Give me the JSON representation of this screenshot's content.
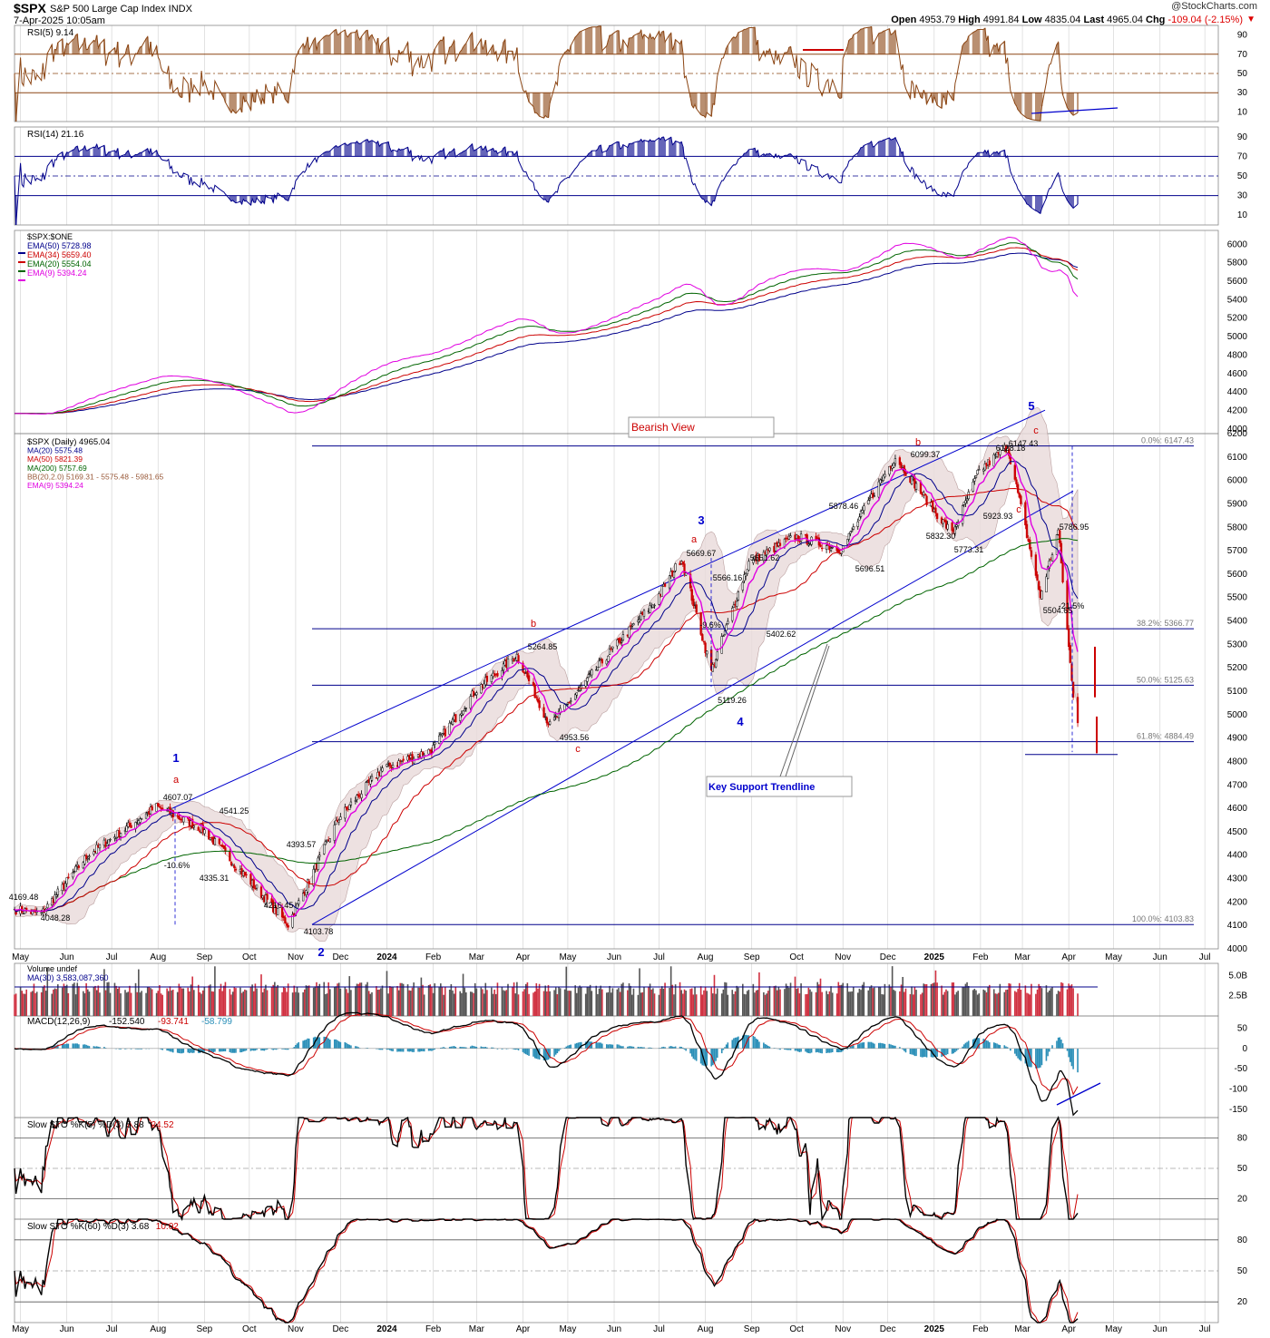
{
  "header": {
    "symbol": "$SPX",
    "name": "S&P 500 Large Cap Index INDX",
    "date": "7-Apr-2025 10:05am",
    "brand": "@StockCharts.com",
    "ohlc": {
      "open_label": "Open",
      "open": "4953.79",
      "high_label": "High",
      "high": "4991.84",
      "low_label": "Low",
      "low": "4835.04",
      "last_label": "Last",
      "last": "4965.04",
      "chg_label": "Chg",
      "chg": "-109.04 (-2.15%)"
    }
  },
  "colors": {
    "rsi": "#8b4513",
    "blue": "#0000cd",
    "navy": "#00008b",
    "red": "#cc0000",
    "green": "#006400",
    "magenta": "#e000e0",
    "bb": "#b09090",
    "bbfill": "#eadcdc",
    "macdhist": "#2a8fb8",
    "grid": "#d6d6d6",
    "volred": "#d03040",
    "volblack": "#555555"
  },
  "x_axis_labels": [
    "May",
    "Jun",
    "Jul",
    "Aug",
    "Sep",
    "Oct",
    "Nov",
    "Dec",
    "2024",
    "Feb",
    "Mar",
    "Apr",
    "May",
    "Jun",
    "Jul",
    "Aug",
    "Sep",
    "Oct",
    "Nov",
    "Dec",
    "2025",
    "Feb",
    "Mar",
    "Apr",
    "May",
    "Jun",
    "Jul"
  ],
  "panels": {
    "rsi5": {
      "legend": "RSI(5) 9.14",
      "ticks": [
        "90",
        "70",
        "50",
        "30",
        "10"
      ]
    },
    "rsi14": {
      "legend": "RSI(14) 21.16",
      "ticks": [
        "90",
        "70",
        "50",
        "30",
        "10"
      ]
    },
    "ratio": {
      "legend": [
        "$SPX:$ONE",
        "EMA(50) 5728.98",
        "EMA(34) 5659.40",
        "EMA(20) 5554.04",
        "EMA(9) 5394.24"
      ],
      "ticks": [
        "6000",
        "5800",
        "5600",
        "5400",
        "5200",
        "5000",
        "4800",
        "4600",
        "4400",
        "4200",
        "4000"
      ]
    },
    "price": {
      "legend": [
        "$SPX (Daily) 4965.04",
        "MA(20) 5575.48",
        "MA(50) 5821.39",
        "MA(200) 5757.69",
        "BB(20,2.0) 5169.31 - 5575.48 - 5981.65",
        "EMA(9) 5394.24"
      ],
      "ticks": [
        "6200",
        "6100",
        "6000",
        "5900",
        "5800",
        "5700",
        "5600",
        "5500",
        "5400",
        "5300",
        "5200",
        "5100",
        "5000",
        "4900",
        "4800",
        "4700",
        "4600",
        "4500",
        "4400",
        "4300",
        "4200",
        "4100",
        "4000"
      ],
      "fib": [
        {
          "label": "0.0%: 6147.43",
          "value": 6147.43
        },
        {
          "label": "38.2%: 5366.77",
          "value": 5366.77
        },
        {
          "label": "50.0%: 5125.63",
          "value": 5125.63
        },
        {
          "label": "61.8%: 4884.49",
          "value": 4884.49
        },
        {
          "label": "100.0%: 4103.83",
          "value": 4103.83
        }
      ],
      "annotations": [
        "Bearish View",
        "Key Support Trendline"
      ],
      "waves": [
        "1",
        "2",
        "3",
        "4",
        "5"
      ],
      "subwaves": [
        "a",
        "b",
        "c",
        "a",
        "b",
        "c",
        "c",
        "a",
        "b",
        "c"
      ],
      "labels": [
        "4607.07",
        "4541.25",
        "4393.57",
        "4169.48",
        "4048.28",
        "4335.31",
        "4216.45",
        "4103.78",
        "-10.6%",
        "5264.85",
        "4953.56",
        "5669.67",
        "5566.16",
        "-9.6%",
        "5119.26",
        "5651.62",
        "5402.62",
        "5878.46",
        "5696.51",
        "6099.37",
        "5832.30",
        "6128.18",
        "5923.93",
        "5773.31",
        "6147.43",
        "5786.95",
        "5504.65",
        "-21.5%"
      ]
    },
    "volume": {
      "legend": [
        "Volume undef",
        "MA(30) 3,583,087,360"
      ],
      "ticks": [
        "5.0B",
        "2.5B"
      ]
    },
    "macd": {
      "legend": "MACD(12,26,9)",
      "values": [
        "-152.540",
        "-93.741",
        "-58.799"
      ],
      "ticks": [
        "50",
        "0",
        "-50",
        "-100",
        "-150"
      ]
    },
    "sto5": {
      "legend": "Slow STO %K(5) %D(3) 5.88",
      "d": "24.52",
      "ticks": [
        "80",
        "50",
        "20"
      ]
    },
    "sto60": {
      "legend": "Slow STO %K(60) %D(3) 3.68",
      "d": "10.02",
      "ticks": [
        "80",
        "50",
        "20"
      ]
    }
  },
  "chart_data": [
    {
      "type": "line",
      "title": "$SPX (Daily)",
      "ylim": [
        4000,
        6200
      ],
      "x": [
        "2023-04-27",
        "2023-05-15",
        "2023-06-15",
        "2023-07-31",
        "2023-08-31",
        "2023-09-30",
        "2023-10-27",
        "2023-11-30",
        "2023-12-29",
        "2024-01-31",
        "2024-02-29",
        "2024-03-28",
        "2024-04-19",
        "2024-05-31",
        "2024-06-28",
        "2024-07-16",
        "2024-08-05",
        "2024-08-30",
        "2024-09-30",
        "2024-10-31",
        "2024-11-29",
        "2024-12-06",
        "2024-12-31",
        "2025-01-13",
        "2025-01-31",
        "2025-02-19",
        "2025-03-13",
        "2025-03-25",
        "2025-04-04",
        "2025-04-07"
      ],
      "series": [
        {
          "name": "$SPX",
          "values": [
            4169.48,
            4150,
            4400,
            4607.07,
            4510,
            4300,
            4103.78,
            4560,
            4770,
            4850,
            5100,
            5254,
            4953.56,
            5280,
            5480,
            5669.67,
            5186,
            5650,
            5760,
            5705,
            6030,
            6099.37,
            5880,
            5773.31,
            6040,
            6147.43,
            5504.65,
            5786.95,
            5074,
            4965.04
          ]
        }
      ],
      "fib_levels": [
        6147.43,
        5366.77,
        5125.63,
        4884.49,
        4103.83
      ]
    },
    {
      "type": "bar",
      "title": "Volume",
      "ylim": [
        0,
        6500000000
      ],
      "series": [
        {
          "name": "MA(30)",
          "values": [
            3583087360
          ]
        }
      ]
    },
    {
      "type": "line",
      "title": "RSI(5)",
      "ylim": [
        0,
        100
      ],
      "series": [
        {
          "name": "RSI(5)",
          "values": [
            9.14
          ]
        }
      ]
    },
    {
      "type": "line",
      "title": "RSI(14)",
      "ylim": [
        0,
        100
      ],
      "series": [
        {
          "name": "RSI(14)",
          "values": [
            21.16
          ]
        }
      ]
    },
    {
      "type": "line",
      "title": "MACD(12,26,9)",
      "ylim": [
        -170,
        80
      ],
      "series": [
        {
          "name": "MACD",
          "values": [
            -152.54
          ]
        },
        {
          "name": "Signal",
          "values": [
            -93.741
          ]
        },
        {
          "name": "Histogram",
          "values": [
            -58.799
          ]
        }
      ]
    }
  ]
}
